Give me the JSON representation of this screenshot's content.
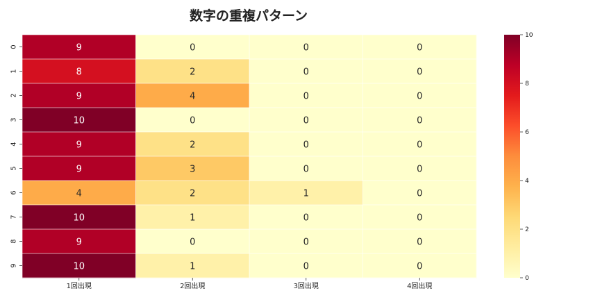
{
  "chart_data": {
    "type": "heatmap",
    "title": "数字の重複パターン",
    "x_categories": [
      "1回出現",
      "2回出現",
      "3回出現",
      "4回出現"
    ],
    "y_categories": [
      "0",
      "1",
      "2",
      "3",
      "4",
      "5",
      "6",
      "7",
      "8",
      "9"
    ],
    "values": [
      [
        9,
        0,
        0,
        0
      ],
      [
        8,
        2,
        0,
        0
      ],
      [
        9,
        4,
        0,
        0
      ],
      [
        10,
        0,
        0,
        0
      ],
      [
        9,
        2,
        0,
        0
      ],
      [
        9,
        3,
        0,
        0
      ],
      [
        4,
        2,
        1,
        0
      ],
      [
        10,
        1,
        0,
        0
      ],
      [
        9,
        0,
        0,
        0
      ],
      [
        10,
        1,
        0,
        0
      ]
    ],
    "colorbar": {
      "min": 0,
      "max": 10,
      "ticks": [
        0,
        2,
        4,
        6,
        8,
        10
      ]
    },
    "colormap": "YlOrRd",
    "annotations": true,
    "grid": true
  }
}
